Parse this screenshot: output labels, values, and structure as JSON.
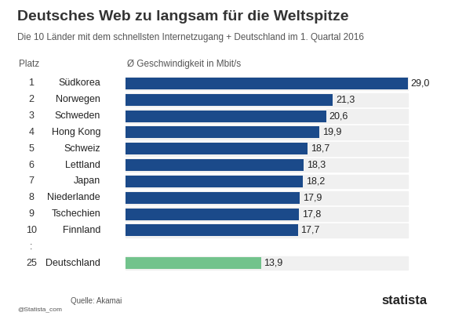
{
  "chart_data": {
    "type": "bar",
    "orientation": "horizontal",
    "title": "Deutsches Web zu langsam für die Weltspitze",
    "subtitle": "Die 10 Länder mit dem schnellsten Internetzugang + Deutschland im 1. Quartal 2016",
    "rank_header": "Platz",
    "x_label": "Ø Geschwindigkeit in Mbit/s",
    "categories": [
      "Südkorea",
      "Norwegen",
      "Schweden",
      "Hong Kong",
      "Schweiz",
      "Lettland",
      "Japan",
      "Niederlande",
      "Tschechien",
      "Finnland",
      null,
      "Deutschland"
    ],
    "rank_labels": [
      "1",
      "2",
      "3",
      "4",
      "5",
      "6",
      "7",
      "8",
      "9",
      "10",
      ":",
      "25"
    ],
    "values": [
      29.0,
      21.3,
      20.6,
      19.9,
      18.7,
      18.3,
      18.2,
      17.9,
      17.8,
      17.7,
      null,
      13.9
    ],
    "value_labels": [
      "29,0",
      "21,3",
      "20,6",
      "19,9",
      "18,7",
      "18,3",
      "18,2",
      "17,9",
      "17,8",
      "17,7",
      null,
      "13,9"
    ],
    "colors": [
      "#1b4a8a",
      "#1b4a8a",
      "#1b4a8a",
      "#1b4a8a",
      "#1b4a8a",
      "#1b4a8a",
      "#1b4a8a",
      "#1b4a8a",
      "#1b4a8a",
      "#1b4a8a",
      null,
      "#72c38c"
    ],
    "xlim": [
      0,
      29.0
    ],
    "xticks": [],
    "data_labels": true,
    "tick_labels": false,
    "grid": false,
    "credit": "@Statista_com",
    "source": "Quelle: Akamai",
    "brand": "statista"
  }
}
